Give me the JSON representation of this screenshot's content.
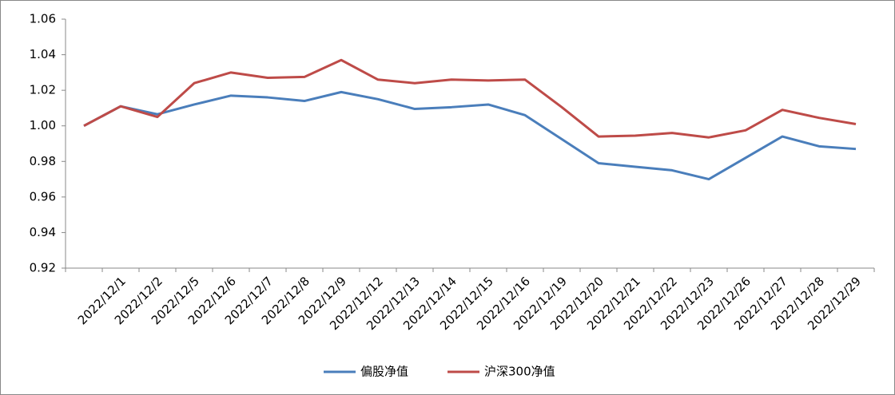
{
  "chart_data": {
    "type": "line",
    "categories": [
      null,
      "2022/12/1",
      "2022/12/2",
      "2022/12/5",
      "2022/12/6",
      "2022/12/7",
      "2022/12/8",
      "2022/12/9",
      "2022/12/12",
      "2022/12/13",
      "2022/12/14",
      "2022/12/15",
      "2022/12/16",
      "2022/12/19",
      "2022/12/20",
      "2022/12/21",
      "2022/12/22",
      "2022/12/23",
      "2022/12/26",
      "2022/12/27",
      "2022/12/28",
      "2022/12/29"
    ],
    "series": [
      {
        "name": "偏股净值",
        "color": "#4a7ebb",
        "values": [
          1.0,
          1.011,
          1.0065,
          1.012,
          1.017,
          1.016,
          1.014,
          1.019,
          1.015,
          1.0095,
          1.0105,
          1.012,
          1.006,
          0.9925,
          0.979,
          0.977,
          0.975,
          0.97,
          0.982,
          0.994,
          0.9885,
          0.987
        ]
      },
      {
        "name": "沪深300净值",
        "color": "#be4b48",
        "values": [
          1.0,
          1.011,
          1.005,
          1.024,
          1.03,
          1.027,
          1.0275,
          1.037,
          1.026,
          1.024,
          1.026,
          1.0255,
          1.026,
          1.0105,
          0.994,
          0.9945,
          0.996,
          0.9935,
          0.9975,
          1.009,
          1.0045,
          1.001
        ]
      }
    ],
    "ylim": [
      0.92,
      1.06
    ],
    "yticks": [
      {
        "value": 0.92,
        "label": "0.92"
      },
      {
        "value": 0.94,
        "label": "0.94"
      },
      {
        "value": 0.96,
        "label": "0.96"
      },
      {
        "value": 0.98,
        "label": "0.98"
      },
      {
        "value": 1.0,
        "label": "1.00"
      },
      {
        "value": 1.02,
        "label": "1.02"
      },
      {
        "value": 1.04,
        "label": "1.04"
      },
      {
        "value": 1.06,
        "label": "1.06"
      }
    ],
    "grid": false,
    "legend": "bottom"
  }
}
